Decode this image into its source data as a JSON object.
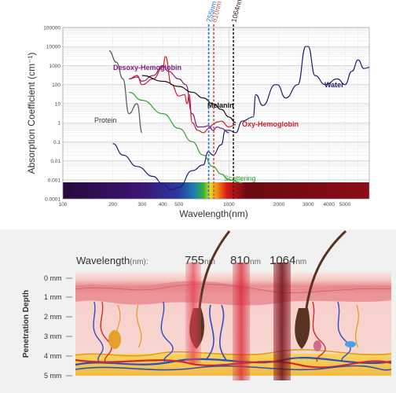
{
  "chart": {
    "ylabel": "Absorption Coefficient (cm⁻¹)",
    "xlabel": "Wavelength(nm)",
    "y_ticks": [
      "100000",
      "10000",
      "1000",
      "100",
      "10",
      "1",
      "0.1",
      "0.01",
      "0.001",
      "0.0001"
    ],
    "x_ticks": [
      "100",
      "200",
      "300",
      "400",
      "500",
      "1000",
      "2000",
      "3000",
      "4000",
      "5000"
    ],
    "markers": [
      {
        "label": "755nm",
        "color": "#2a6fd6"
      },
      {
        "label": "810nm",
        "color": "#c25a5a"
      },
      {
        "label": "1064nm",
        "color": "#3a1e1e"
      }
    ],
    "curve_labels": {
      "desoxy": "Desoxy-Hemoglobin",
      "melanin": "Melanin",
      "protein": "Protein",
      "oxy": "Oxy-Hemoglobin",
      "water": "Water",
      "scattering": "Scattering"
    },
    "colors": {
      "desoxy": "#7a1f7a",
      "melanin": "#111111",
      "protein": "#555555",
      "oxy": "#d01a2a",
      "water": "#1c1c6e",
      "scattering": "#2aa52a"
    }
  },
  "chart_data": {
    "type": "line",
    "xscale": "log",
    "yscale": "log",
    "xlim": [
      100,
      7000
    ],
    "ylim": [
      0.0001,
      100000
    ],
    "xlabel": "Wavelength(nm)",
    "ylabel": "Absorption Coefficient (cm⁻¹)",
    "series": [
      {
        "name": "Water",
        "x": [
          200,
          230,
          280,
          350,
          400,
          450,
          500,
          600,
          700,
          750,
          800,
          900,
          950,
          1000,
          1100,
          1200,
          1400,
          1450,
          1600,
          1900,
          1950,
          2200,
          2600,
          2900,
          3000,
          3300,
          3800,
          4500,
          5000,
          5500,
          6000,
          6500,
          7000
        ],
        "y": [
          0.08,
          0.02,
          0.005,
          0.0015,
          0.0006,
          0.0003,
          0.0004,
          0.003,
          0.006,
          0.03,
          0.02,
          0.07,
          0.4,
          0.4,
          0.3,
          1.2,
          2,
          30,
          8,
          100,
          100,
          20,
          100,
          10000,
          10000,
          300,
          100,
          200,
          100,
          500,
          2000,
          700,
          800
        ]
      },
      {
        "name": "Desoxy-Hemoglobin",
        "x": [
          250,
          280,
          300,
          350,
          400,
          430,
          500,
          550,
          600,
          650,
          700,
          755,
          800,
          850,
          900,
          1000
        ],
        "y": [
          200,
          250,
          150,
          300,
          1000,
          500,
          200,
          100,
          3,
          0.6,
          0.6,
          0.7,
          0.4,
          0.6,
          0.5,
          0.3
        ]
      },
      {
        "name": "Oxy-Hemoglobin",
        "x": [
          250,
          280,
          300,
          350,
          400,
          415,
          450,
          500,
          540,
          560,
          576,
          600,
          650,
          700,
          760,
          800,
          850,
          900,
          1000,
          1100
        ],
        "y": [
          200,
          300,
          100,
          200,
          800,
          3000,
          100,
          25,
          30,
          10,
          30,
          1,
          0.4,
          0.3,
          0.5,
          0.8,
          1.1,
          1.2,
          0.6,
          0.8
        ]
      },
      {
        "name": "Melanin",
        "x": [
          300,
          400,
          500,
          600,
          700,
          800,
          900,
          1000,
          1100
        ],
        "y": [
          300,
          150,
          80,
          40,
          20,
          10,
          5,
          2,
          1
        ]
      },
      {
        "name": "Protein",
        "x": [
          190,
          210,
          230,
          250,
          280,
          300
        ],
        "y": [
          6000,
          1500,
          200,
          3,
          10,
          0.3
        ]
      },
      {
        "name": "Scattering",
        "x": [
          250,
          300,
          400,
          500,
          600,
          700,
          800,
          900,
          1000,
          1200
        ],
        "y": [
          40,
          15,
          3,
          0.5,
          0.1,
          0.02,
          0.005,
          0.002,
          0.001,
          0.0007
        ]
      }
    ],
    "vlines": [
      755,
      810,
      1064
    ]
  },
  "skin": {
    "title": "Wavelength",
    "unit": "(nm):",
    "beams": [
      {
        "value": "755",
        "unit": "nm"
      },
      {
        "value": "810",
        "unit": "nm"
      },
      {
        "value": "1064",
        "unit": "nm"
      }
    ],
    "depth_title": "Penetration Depth",
    "depth_ticks": [
      "0 mm",
      "1 mm",
      "2 mm",
      "3 mm",
      "4 mm",
      "5 mm"
    ]
  }
}
